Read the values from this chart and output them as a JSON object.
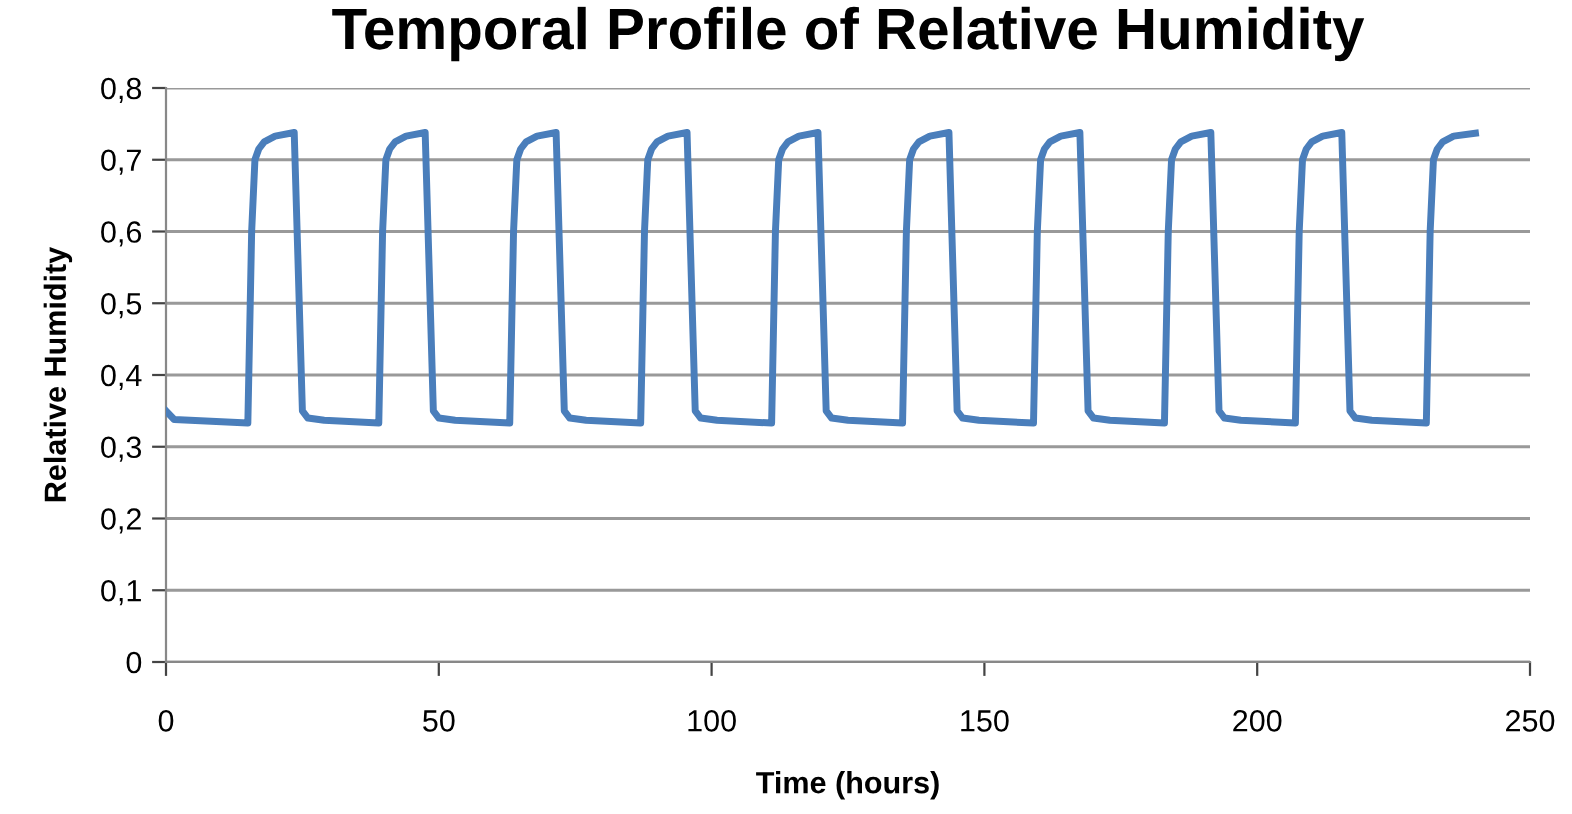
{
  "chart_data": {
    "type": "line",
    "title": "Temporal Profile of Relative Humidity",
    "xlabel": "Time (hours)",
    "ylabel": "Relative Humidity",
    "series": [
      {
        "color": "#4a7ebb",
        "x": [
          0,
          1.5,
          15,
          15.7,
          16.3,
          17,
          18,
          20,
          23.5,
          25,
          26,
          29,
          39,
          39.7,
          40.3,
          41,
          42,
          44,
          47.5,
          49,
          50,
          53,
          63,
          63.7,
          64.3,
          65,
          66,
          68,
          71.5,
          73,
          74,
          77,
          87,
          87.7,
          88.3,
          89,
          90,
          92,
          95.5,
          97,
          98,
          101,
          111,
          111.7,
          112.3,
          113,
          114,
          116,
          119.5,
          121,
          122,
          125,
          135,
          135.7,
          136.3,
          137,
          138,
          140,
          143.5,
          145,
          146,
          149,
          159,
          159.7,
          160.3,
          161,
          162,
          164,
          167.5,
          169,
          170,
          173,
          183,
          183.7,
          184.3,
          185,
          186,
          188,
          191.5,
          193,
          194,
          197,
          207,
          207.7,
          208.3,
          209,
          210,
          212,
          215.5,
          217,
          218,
          221,
          231,
          231.7,
          232.3,
          233,
          234,
          236,
          240
        ],
        "values": [
          0.35,
          0.338,
          0.333,
          0.6,
          0.7,
          0.715,
          0.725,
          0.733,
          0.738,
          0.35,
          0.34,
          0.337,
          0.333,
          0.6,
          0.7,
          0.715,
          0.725,
          0.733,
          0.738,
          0.35,
          0.34,
          0.337,
          0.333,
          0.6,
          0.7,
          0.715,
          0.725,
          0.733,
          0.738,
          0.35,
          0.34,
          0.337,
          0.333,
          0.6,
          0.7,
          0.715,
          0.725,
          0.733,
          0.738,
          0.35,
          0.34,
          0.337,
          0.333,
          0.6,
          0.7,
          0.715,
          0.725,
          0.733,
          0.738,
          0.35,
          0.34,
          0.337,
          0.333,
          0.6,
          0.7,
          0.715,
          0.725,
          0.733,
          0.738,
          0.35,
          0.34,
          0.337,
          0.333,
          0.6,
          0.7,
          0.715,
          0.725,
          0.733,
          0.738,
          0.35,
          0.34,
          0.337,
          0.333,
          0.6,
          0.7,
          0.715,
          0.725,
          0.733,
          0.738,
          0.35,
          0.34,
          0.337,
          0.333,
          0.6,
          0.7,
          0.715,
          0.725,
          0.733,
          0.738,
          0.35,
          0.34,
          0.337,
          0.333,
          0.6,
          0.7,
          0.715,
          0.725,
          0.733,
          0.737
        ]
      }
    ],
    "xlim": [
      0,
      250
    ],
    "xticks": [
      0,
      50,
      100,
      150,
      200,
      250
    ],
    "ylim": [
      0,
      0.8
    ],
    "yticks": [
      0,
      {
        "value": 0.1,
        "label": "0,1"
      },
      {
        "value": 0.2,
        "label": "0,2"
      },
      {
        "value": 0.3,
        "label": "0,3"
      },
      {
        "value": 0.4,
        "label": "0,4"
      },
      {
        "value": 0.5,
        "label": "0,5"
      },
      {
        "value": 0.6,
        "label": "0,6"
      },
      {
        "value": 0.7,
        "label": "0,7"
      },
      {
        "value": 0.8,
        "label": "0,8"
      }
    ],
    "grid": "y",
    "legend": false,
    "marker": "none",
    "line_style": "solid"
  }
}
